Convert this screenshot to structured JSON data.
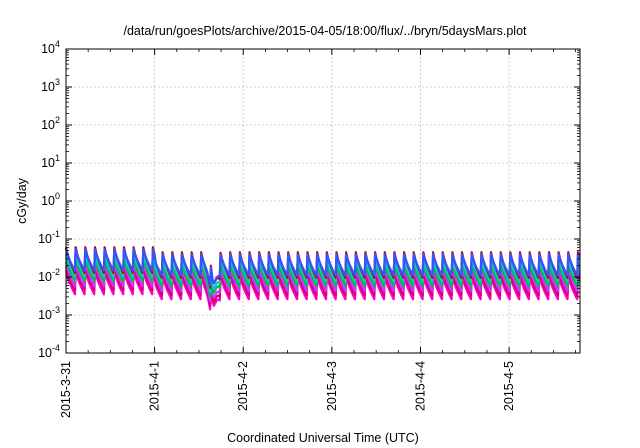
{
  "chart_data": {
    "type": "line",
    "title": "/data/run/goesPlots/archive/2015-04-05/18:00/flux/../bryn/5daysMars.plot",
    "xlabel": "Coordinated Universal Time (UTC)",
    "ylabel": "cGy/day",
    "yscale": "log",
    "ylim": [
      0.0001,
      10000
    ],
    "xlim_days": [
      0,
      5.8
    ],
    "grid": true,
    "y_ticks": [
      {
        "base": "10",
        "exp": "-4",
        "value": 0.0001
      },
      {
        "base": "10",
        "exp": "-3",
        "value": 0.001
      },
      {
        "base": "10",
        "exp": "-2",
        "value": 0.01
      },
      {
        "base": "10",
        "exp": "-1",
        "value": 0.1
      },
      {
        "base": "10",
        "exp": "0",
        "value": 1
      },
      {
        "base": "10",
        "exp": "1",
        "value": 10
      },
      {
        "base": "10",
        "exp": "2",
        "value": 100
      },
      {
        "base": "10",
        "exp": "3",
        "value": 1000
      },
      {
        "base": "10",
        "exp": "4",
        "value": 10000
      }
    ],
    "x_ticks": [
      {
        "label": "2015-3-31",
        "day": 0
      },
      {
        "label": "2015-4-1",
        "day": 1
      },
      {
        "label": "2015-4-2",
        "day": 2
      },
      {
        "label": "2015-4-3",
        "day": 3
      },
      {
        "label": "2015-4-4",
        "day": 4
      },
      {
        "label": "2015-4-5",
        "day": 5
      }
    ],
    "series": [
      {
        "color": "#ff00cc",
        "peak": 0.011,
        "trough": 0.0026
      },
      {
        "color": "#d4006a",
        "peak": 0.014,
        "trough": 0.0033
      },
      {
        "color": "#cc33ff",
        "peak": 0.018,
        "trough": 0.0042
      },
      {
        "color": "#00bb44",
        "peak": 0.024,
        "trough": 0.0058
      },
      {
        "color": "#00cccc",
        "peak": 0.03,
        "trough": 0.0075
      },
      {
        "color": "#cc0000",
        "peak": 0.045,
        "trough": 0.0095
      },
      {
        "color": "#3355ff",
        "peak": 0.04,
        "trough": 0.011
      }
    ],
    "orbit_period_days": 0.109,
    "early_boost": {
      "until_day": 1.0,
      "factor": 1.35
    },
    "dip": {
      "center_day": 1.66,
      "width_days": 0.05,
      "min_factor": 0.28
    }
  }
}
